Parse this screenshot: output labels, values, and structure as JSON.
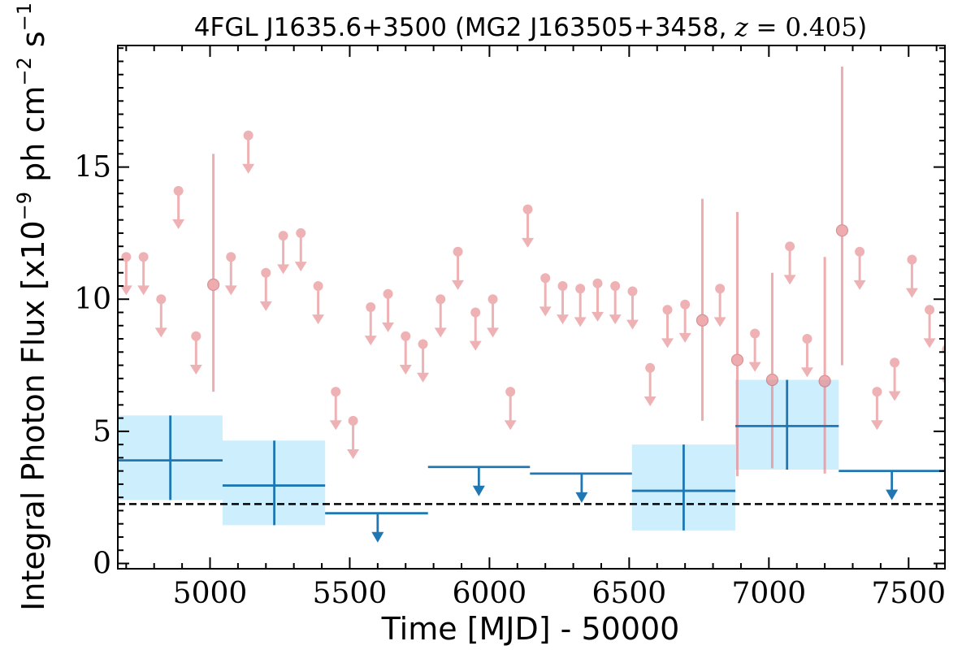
{
  "chart_data": {
    "type": "scatter",
    "title": "4FGL J1635.6+3500 (MG2 J163505+3458, z = 0.405)",
    "xlabel": "Time [MJD] - 50000",
    "ylabel": "Integral Photon Flux [x10^-9 ph cm^-2 s^-1]",
    "ylabel_parts": {
      "pre": "Integral Photon Flux [x10",
      "exp1": "−9",
      "mid": " ph cm",
      "exp2": "−2",
      "post": " s",
      "exp3": "−1",
      "end": "]"
    },
    "title_parts": {
      "pre": "4FGL J1635.6+3500 (MG2 J163505+3458, ",
      "z": "z",
      "eq": " = 0.405",
      "end": ")"
    },
    "xlim": [
      4670,
      7630
    ],
    "ylim": [
      -0.2,
      19.6
    ],
    "xticks": [
      5000,
      5500,
      6000,
      6500,
      7000,
      7500
    ],
    "yticks": [
      0,
      5,
      10,
      15
    ],
    "grid": false,
    "colors": {
      "short_bins": "#e88a8d",
      "long_bins": "#1f77b4",
      "long_bins_fill": "#cdeefc",
      "baseline": "#000000"
    },
    "baseline_flux": 2.25,
    "short_bin_upper_limits": [
      {
        "x": 4700,
        "y": 11.6
      },
      {
        "x": 4762,
        "y": 11.6
      },
      {
        "x": 4825,
        "y": 10.0
      },
      {
        "x": 4887,
        "y": 14.1
      },
      {
        "x": 4950,
        "y": 8.6
      },
      {
        "x": 5075,
        "y": 11.6
      },
      {
        "x": 5137,
        "y": 16.2
      },
      {
        "x": 5200,
        "y": 11.0
      },
      {
        "x": 5262,
        "y": 12.4
      },
      {
        "x": 5325,
        "y": 12.5
      },
      {
        "x": 5387,
        "y": 10.5
      },
      {
        "x": 5450,
        "y": 6.5
      },
      {
        "x": 5512,
        "y": 5.4
      },
      {
        "x": 5575,
        "y": 9.7
      },
      {
        "x": 5637,
        "y": 10.2
      },
      {
        "x": 5700,
        "y": 8.6
      },
      {
        "x": 5762,
        "y": 8.3
      },
      {
        "x": 5825,
        "y": 10.0
      },
      {
        "x": 5887,
        "y": 11.8
      },
      {
        "x": 5950,
        "y": 9.5
      },
      {
        "x": 6012,
        "y": 10.0
      },
      {
        "x": 6075,
        "y": 6.5
      },
      {
        "x": 6137,
        "y": 13.4
      },
      {
        "x": 6200,
        "y": 10.8
      },
      {
        "x": 6262,
        "y": 10.5
      },
      {
        "x": 6325,
        "y": 10.4
      },
      {
        "x": 6387,
        "y": 10.6
      },
      {
        "x": 6450,
        "y": 10.5
      },
      {
        "x": 6512,
        "y": 10.3
      },
      {
        "x": 6575,
        "y": 7.4
      },
      {
        "x": 6637,
        "y": 9.6
      },
      {
        "x": 6700,
        "y": 9.8
      },
      {
        "x": 6825,
        "y": 10.4
      },
      {
        "x": 6950,
        "y": 8.7
      },
      {
        "x": 7075,
        "y": 12.0
      },
      {
        "x": 7137,
        "y": 8.5
      },
      {
        "x": 7325,
        "y": 11.8
      },
      {
        "x": 7387,
        "y": 6.5
      },
      {
        "x": 7450,
        "y": 7.6
      },
      {
        "x": 7512,
        "y": 11.5
      },
      {
        "x": 7575,
        "y": 9.6
      },
      {
        "x": 7637,
        "y": 8.1
      }
    ],
    "short_bin_detections": [
      {
        "x": 5012,
        "y": 10.55,
        "ylo": 6.5,
        "yhi": 15.5
      },
      {
        "x": 6762,
        "y": 9.2,
        "ylo": 5.4,
        "yhi": 13.8
      },
      {
        "x": 6887,
        "y": 7.7,
        "ylo": 3.3,
        "yhi": 13.3
      },
      {
        "x": 7012,
        "y": 6.95,
        "ylo": 3.6,
        "yhi": 11.0
      },
      {
        "x": 7200,
        "y": 6.9,
        "ylo": 3.4,
        "yhi": 11.6
      },
      {
        "x": 7262,
        "y": 12.6,
        "ylo": 7.5,
        "yhi": 18.8
      }
    ],
    "long_bin_detections": [
      {
        "x0": 4670,
        "x1": 5045,
        "xc": 4858,
        "y": 3.9,
        "ylo": 2.4,
        "yhi": 5.6
      },
      {
        "x0": 5045,
        "x1": 5412,
        "xc": 5230,
        "y": 2.95,
        "ylo": 1.45,
        "yhi": 4.65
      },
      {
        "x0": 6510,
        "x1": 6880,
        "xc": 6695,
        "y": 2.75,
        "ylo": 1.25,
        "yhi": 4.5
      },
      {
        "x0": 6880,
        "x1": 7250,
        "xc": 7065,
        "y": 5.2,
        "ylo": 3.55,
        "yhi": 6.95
      }
    ],
    "long_bin_upper_limits": [
      {
        "x0": 5412,
        "x1": 5780,
        "xc": 5600,
        "y": 1.9
      },
      {
        "x0": 5780,
        "x1": 6145,
        "xc": 5962,
        "y": 3.65
      },
      {
        "x0": 6145,
        "x1": 6510,
        "xc": 6330,
        "y": 3.4
      },
      {
        "x0": 7250,
        "x1": 7630,
        "xc": 7440,
        "y": 3.5
      }
    ]
  }
}
